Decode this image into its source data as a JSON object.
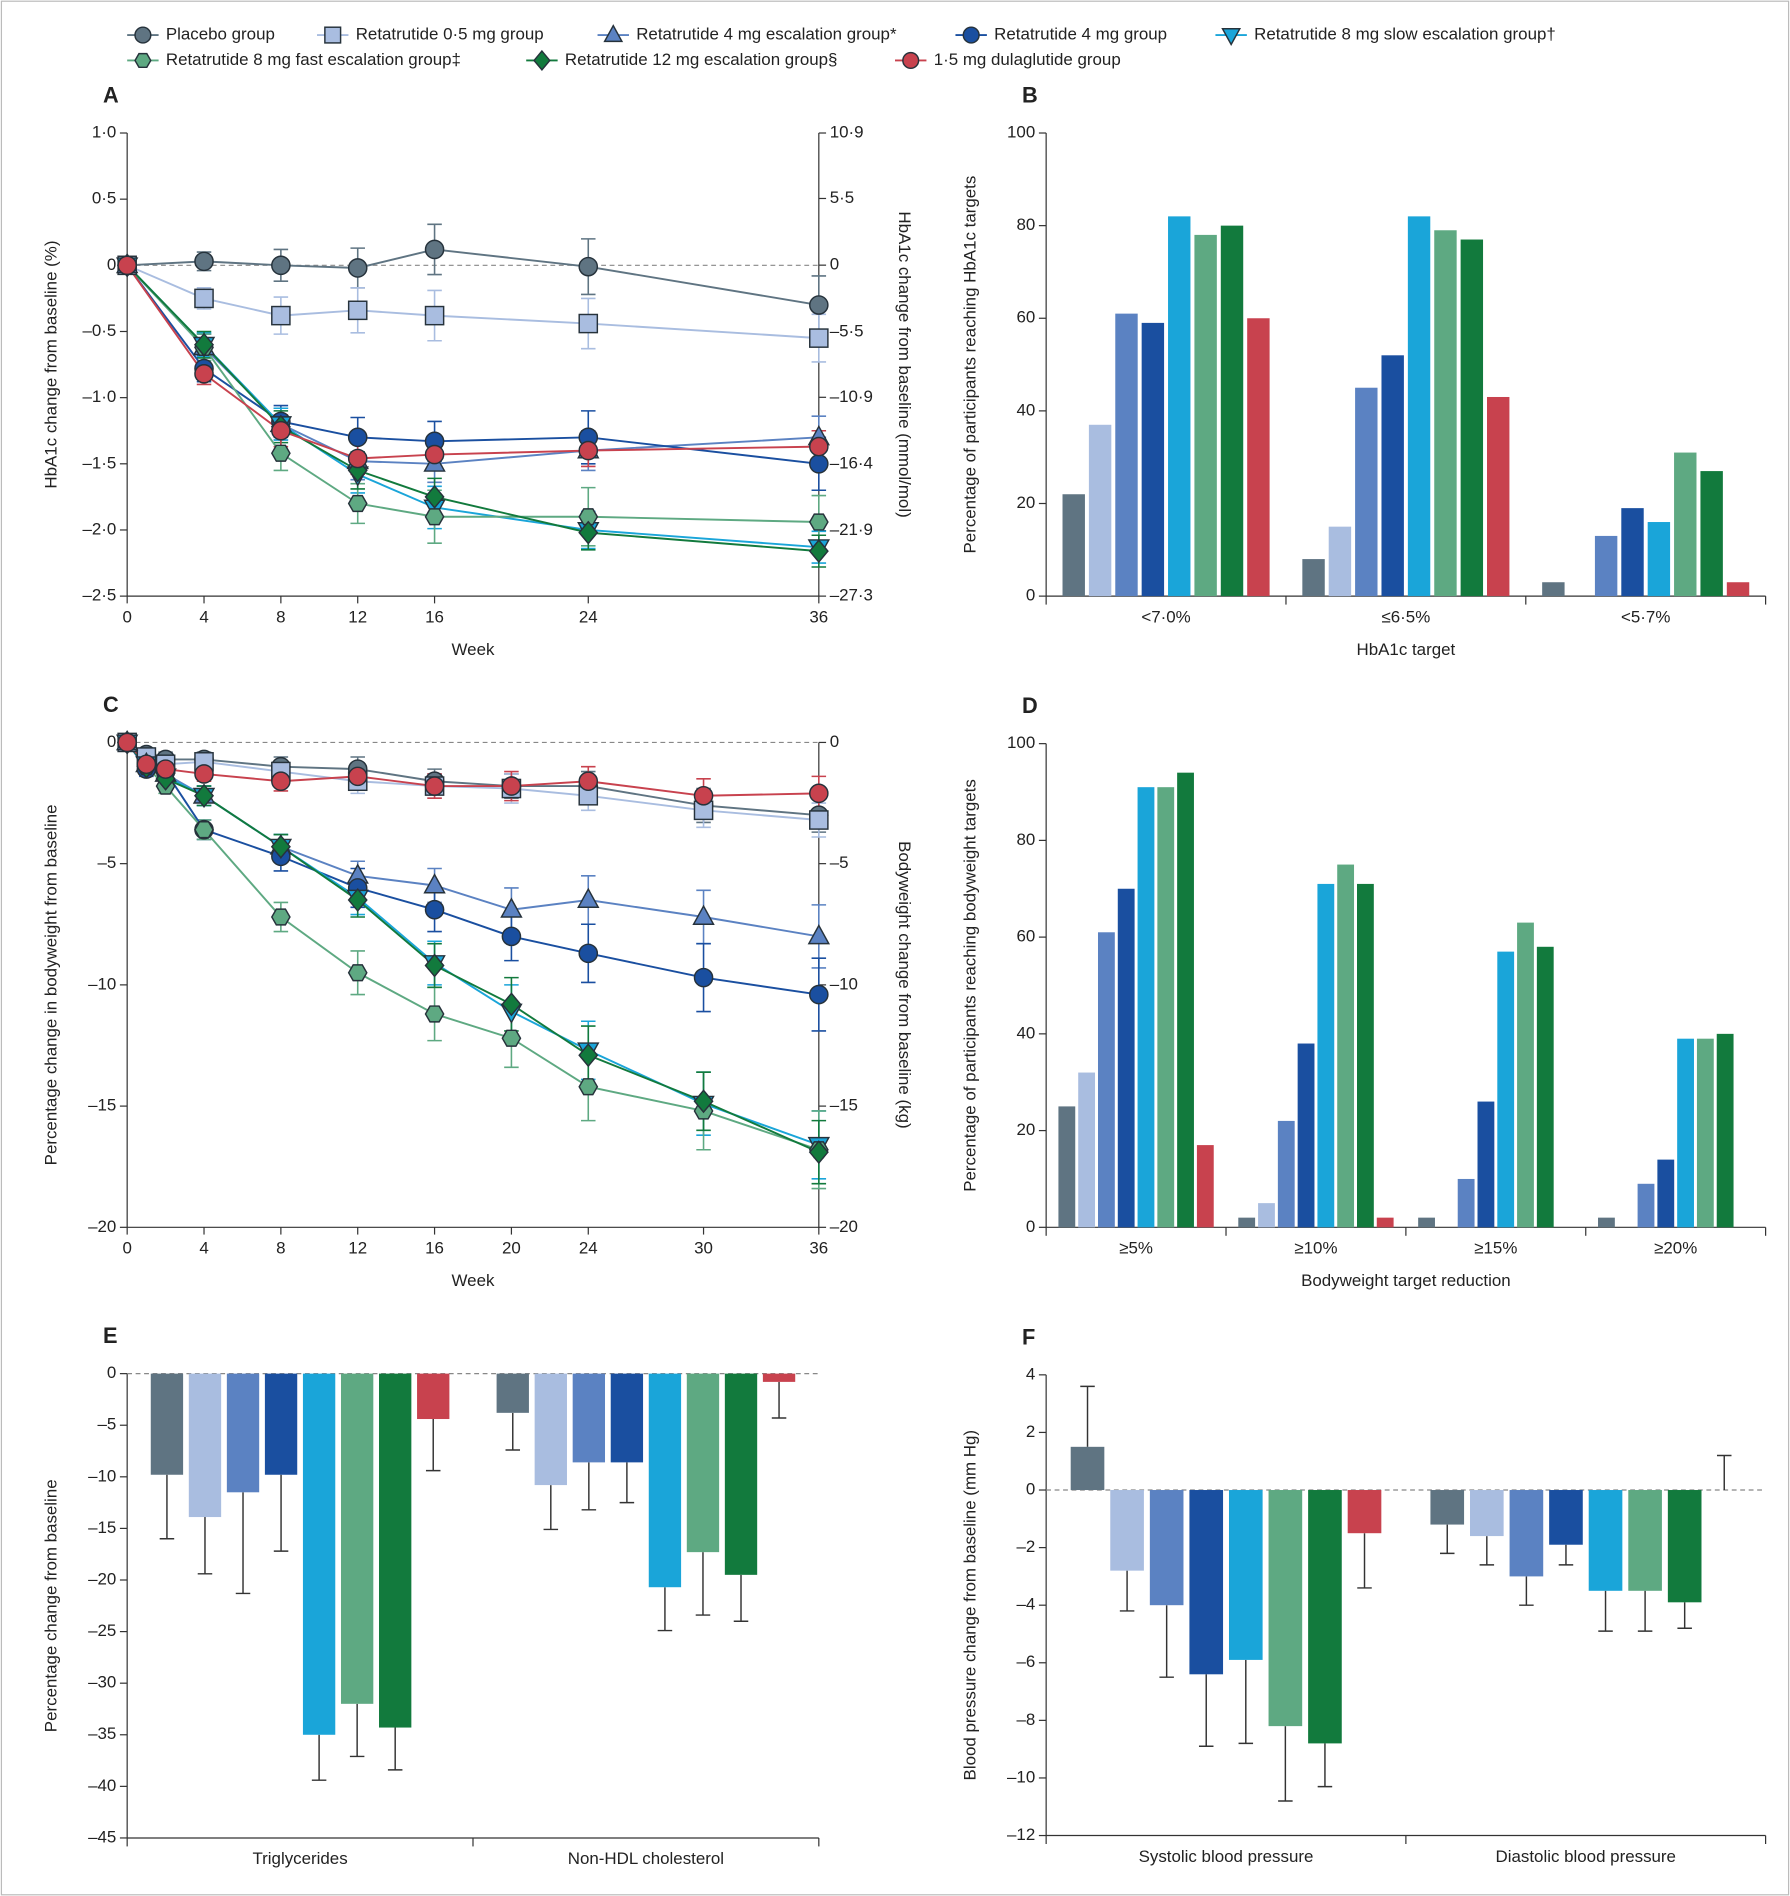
{
  "chart_data": [
    {
      "type": "line",
      "panel": "A",
      "xlabel": "Week",
      "ylabel": "HbA1c change from baseline (%)",
      "y2label": "HbA1c change from baseline (mmol/mol)",
      "x": [
        0,
        4,
        8,
        12,
        16,
        24,
        36
      ],
      "xlim": [
        0,
        36
      ],
      "xticks": [
        0,
        4,
        8,
        12,
        16,
        24,
        36
      ],
      "ylim": [
        -2.5,
        1.0
      ],
      "yticks": [
        {
          "value": 1.0,
          "label": "1·0"
        },
        {
          "value": 0.5,
          "label": "0·5"
        },
        0,
        {
          "value": -0.5,
          "label": "–0·5"
        },
        {
          "value": -1.0,
          "label": "–1·0"
        },
        {
          "value": -1.5,
          "label": "–1·5"
        },
        {
          "value": -2.0,
          "label": "–2·0"
        },
        {
          "value": -2.5,
          "label": "–2·5"
        }
      ],
      "y2lim": [
        -27.3,
        10.9
      ],
      "y2ticks": [
        {
          "value": 10.9,
          "label": "10·9"
        },
        {
          "value": 5.5,
          "label": "5·5"
        },
        0,
        {
          "value": -5.5,
          "label": "–5·5"
        },
        {
          "value": -10.9,
          "label": "–10·9"
        },
        {
          "value": -16.4,
          "label": "–16·4"
        },
        {
          "value": -21.9,
          "label": "–21·9"
        },
        {
          "value": -27.3,
          "label": "–27·3"
        }
      ],
      "zero_line": true,
      "series": [
        {
          "name": "Placebo group",
          "color": "#5f7482",
          "marker": "circle",
          "values": [
            0,
            0.03,
            0,
            -0.02,
            0.12,
            -0.01,
            -0.3
          ],
          "errors": [
            0.06,
            0.07,
            0.12,
            0.15,
            0.19,
            0.21,
            0.22
          ]
        },
        {
          "name": "Retatrutide 0·5 mg group",
          "color": "#a9bde0",
          "marker": "square",
          "values": [
            0,
            -0.25,
            -0.38,
            -0.34,
            -0.38,
            -0.44,
            -0.55
          ],
          "errors": [
            0.06,
            0.08,
            0.14,
            0.17,
            0.19,
            0.19,
            0.18
          ]
        },
        {
          "name": "Retatrutide 4 mg escalation group*",
          "color": "#5b82c2",
          "marker": "triangle",
          "values": [
            0,
            -0.62,
            -1.2,
            -1.48,
            -1.5,
            -1.4,
            -1.3
          ],
          "errors": [
            0.05,
            0.1,
            0.12,
            0.14,
            0.14,
            0.15,
            0.16
          ]
        },
        {
          "name": "Retatrutide 4 mg group",
          "color": "#1a4fa0",
          "marker": "circle",
          "values": [
            0,
            -0.78,
            -1.18,
            -1.3,
            -1.33,
            -1.3,
            -1.5
          ],
          "errors": [
            0.05,
            0.1,
            0.12,
            0.15,
            0.15,
            0.2,
            0.2
          ]
        },
        {
          "name": "Retatrutide 8 mg slow escalation group†",
          "color": "#1aa5d9",
          "marker": "triangle-down",
          "values": [
            0,
            -0.6,
            -1.2,
            -1.58,
            -1.83,
            -2.0,
            -2.13
          ],
          "errors": [
            0.05,
            0.09,
            0.12,
            0.14,
            0.16,
            0.14,
            0.12
          ]
        },
        {
          "name": "Retatrutide 8 mg fast escalation group‡",
          "color": "#5ea982",
          "marker": "hexagon",
          "values": [
            0,
            -0.62,
            -1.42,
            -1.8,
            -1.9,
            -1.9,
            -1.94
          ],
          "errors": [
            0.05,
            0.1,
            0.13,
            0.15,
            0.2,
            0.22,
            0.2
          ]
        },
        {
          "name": "Retatrutide 12 mg escalation group§",
          "color": "#127a3d",
          "marker": "diamond",
          "values": [
            0,
            -0.6,
            -1.22,
            -1.55,
            -1.75,
            -2.02,
            -2.16
          ],
          "errors": [
            0.05,
            0.1,
            0.12,
            0.14,
            0.14,
            0.13,
            0.12
          ]
        },
        {
          "name": "1·5 mg dulaglutide  group",
          "color": "#c8424e",
          "marker": "circle",
          "values": [
            0,
            -0.82,
            -1.25,
            -1.46,
            -1.43,
            -1.4,
            -1.37
          ],
          "errors": [
            0.05,
            0.08,
            0.12,
            0.12,
            0.12,
            0.12,
            0.12
          ]
        }
      ]
    },
    {
      "type": "bar",
      "panel": "B",
      "xlabel": "HbA1c target",
      "ylabel": "Percentage of participants reaching HbA1c targets",
      "categories": [
        "<7·0%",
        "≤6·5%",
        "<5·7%"
      ],
      "ylim": [
        0,
        100
      ],
      "yticks": [
        0,
        20,
        40,
        60,
        80,
        100
      ],
      "series": [
        {
          "color": "#5f7482",
          "values": [
            22,
            8,
            3
          ]
        },
        {
          "color": "#a9bde0",
          "values": [
            37,
            15,
            0
          ]
        },
        {
          "color": "#5b82c2",
          "values": [
            61,
            45,
            13
          ]
        },
        {
          "color": "#1a4fa0",
          "values": [
            59,
            52,
            19
          ]
        },
        {
          "color": "#1aa5d9",
          "values": [
            82,
            82,
            16
          ]
        },
        {
          "color": "#5ea982",
          "values": [
            78,
            79,
            31
          ]
        },
        {
          "color": "#127a3d",
          "values": [
            80,
            77,
            27
          ]
        },
        {
          "color": "#c8424e",
          "values": [
            60,
            43,
            3
          ]
        }
      ]
    },
    {
      "type": "line",
      "panel": "C",
      "xlabel": "Week",
      "ylabel": "Percentage change in bodyweight from baseline",
      "y2label": "Bodyweight change from baseline (kg)",
      "x": [
        0,
        1,
        2,
        4,
        8,
        12,
        16,
        20,
        24,
        30,
        36
      ],
      "xlim": [
        0,
        36
      ],
      "xticks": [
        0,
        4,
        8,
        12,
        16,
        20,
        24,
        30,
        36
      ],
      "ylim": [
        -20,
        0
      ],
      "yticks": [
        0,
        {
          "value": -5,
          "label": "–5"
        },
        {
          "value": -10,
          "label": "–10"
        },
        {
          "value": -15,
          "label": "–15"
        },
        {
          "value": -20,
          "label": "–20"
        }
      ],
      "y2lim": [
        -20,
        0
      ],
      "y2ticks": [
        0,
        {
          "value": -5,
          "label": "–5"
        },
        {
          "value": -10,
          "label": "–10"
        },
        {
          "value": -15,
          "label": "–15"
        },
        {
          "value": -20,
          "label": "–20"
        }
      ],
      "zero_line": true,
      "series": [
        {
          "color": "#5f7482",
          "marker": "circle",
          "values": [
            0,
            -0.5,
            -0.7,
            -0.7,
            -1.0,
            -1.1,
            -1.6,
            -1.8,
            -1.8,
            -2.6,
            -3.0
          ],
          "errors": [
            0.1,
            0.2,
            0.3,
            0.3,
            0.4,
            0.5,
            0.5,
            0.5,
            0.6,
            0.7,
            0.7
          ]
        },
        {
          "color": "#a9bde0",
          "marker": "square",
          "values": [
            0,
            -0.6,
            -0.9,
            -0.8,
            -1.2,
            -1.6,
            -1.8,
            -1.9,
            -2.2,
            -2.8,
            -3.2
          ],
          "errors": [
            0.1,
            0.2,
            0.3,
            0.3,
            0.4,
            0.5,
            0.5,
            0.6,
            0.6,
            0.7,
            0.7
          ]
        },
        {
          "color": "#5b82c2",
          "marker": "triangle",
          "values": [
            0,
            -0.9,
            -1.3,
            -2.2,
            -4.3,
            -5.5,
            -5.9,
            -6.9,
            -6.5,
            -7.2,
            -8.0
          ],
          "errors": [
            0.1,
            0.3,
            0.3,
            0.4,
            0.5,
            0.6,
            0.7,
            0.9,
            1.0,
            1.1,
            1.3
          ]
        },
        {
          "color": "#1a4fa0",
          "marker": "circle",
          "values": [
            0,
            -1.1,
            -1.2,
            -3.6,
            -4.7,
            -6.0,
            -6.9,
            -8.0,
            -8.7,
            -9.7,
            -10.4
          ],
          "errors": [
            0.1,
            0.3,
            0.3,
            0.4,
            0.6,
            0.8,
            0.9,
            1.0,
            1.2,
            1.4,
            1.5
          ]
        },
        {
          "color": "#1aa5d9",
          "marker": "triangle-down",
          "values": [
            0,
            -0.9,
            -1.4,
            -2.2,
            -4.3,
            -6.4,
            -9.1,
            -11.1,
            -12.7,
            -14.9,
            -16.6
          ],
          "errors": [
            0.1,
            0.3,
            0.3,
            0.4,
            0.5,
            0.7,
            0.9,
            1.1,
            1.2,
            1.3,
            1.4
          ]
        },
        {
          "color": "#5ea982",
          "marker": "hexagon",
          "values": [
            0,
            -1.0,
            -1.8,
            -3.6,
            -7.2,
            -9.5,
            -11.2,
            -12.2,
            -14.2,
            -15.2,
            -16.8
          ],
          "errors": [
            0.1,
            0.3,
            0.3,
            0.4,
            0.6,
            0.9,
            1.1,
            1.2,
            1.4,
            1.6,
            1.6
          ]
        },
        {
          "color": "#127a3d",
          "marker": "diamond",
          "values": [
            0,
            -1.0,
            -1.5,
            -2.2,
            -4.3,
            -6.5,
            -9.2,
            -10.8,
            -12.9,
            -14.8,
            -16.9
          ],
          "errors": [
            0.1,
            0.3,
            0.3,
            0.4,
            0.5,
            0.7,
            0.9,
            1.1,
            1.2,
            1.2,
            1.3
          ]
        },
        {
          "color": "#c8424e",
          "marker": "circle",
          "values": [
            0,
            -0.9,
            -1.1,
            -1.3,
            -1.6,
            -1.4,
            -1.8,
            -1.8,
            -1.6,
            -2.2,
            -2.1
          ],
          "errors": [
            0.1,
            0.2,
            0.3,
            0.3,
            0.4,
            0.5,
            0.5,
            0.6,
            0.6,
            0.7,
            0.7
          ]
        }
      ]
    },
    {
      "type": "bar",
      "panel": "D",
      "xlabel": "Bodyweight target reduction",
      "ylabel": "Percentage of participants reaching bodyweight targets",
      "categories": [
        "≥5%",
        "≥10%",
        "≥15%",
        "≥20%"
      ],
      "ylim": [
        0,
        100
      ],
      "yticks": [
        0,
        20,
        40,
        60,
        80,
        100
      ],
      "series": [
        {
          "color": "#5f7482",
          "values": [
            25,
            2,
            2,
            2
          ]
        },
        {
          "color": "#a9bde0",
          "values": [
            32,
            5,
            0,
            0
          ]
        },
        {
          "color": "#5b82c2",
          "values": [
            61,
            22,
            10,
            9
          ]
        },
        {
          "color": "#1a4fa0",
          "values": [
            70,
            38,
            26,
            14
          ]
        },
        {
          "color": "#1aa5d9",
          "values": [
            91,
            71,
            57,
            39
          ]
        },
        {
          "color": "#5ea982",
          "values": [
            91,
            75,
            63,
            39
          ]
        },
        {
          "color": "#127a3d",
          "values": [
            94,
            71,
            58,
            40
          ]
        },
        {
          "color": "#c8424e",
          "values": [
            17,
            2,
            0,
            0
          ]
        }
      ]
    },
    {
      "type": "bar",
      "panel": "E",
      "ylabel": "Percentage change from baseline",
      "categories": [
        "Triglycerides",
        "Non-HDL cholesterol"
      ],
      "ylim": [
        -45,
        0
      ],
      "yticks": [
        0,
        {
          "value": -5,
          "label": "–5"
        },
        {
          "value": -10,
          "label": "–10"
        },
        {
          "value": -15,
          "label": "–15"
        },
        {
          "value": -20,
          "label": "–20"
        },
        {
          "value": -25,
          "label": "–25"
        },
        {
          "value": -30,
          "label": "–30"
        },
        {
          "value": -35,
          "label": "–35"
        },
        {
          "value": -40,
          "label": "–40"
        },
        {
          "value": -45,
          "label": "–45"
        }
      ],
      "zero_line": true,
      "series": [
        {
          "color": "#5f7482",
          "values": [
            -9.8,
            -3.8
          ],
          "errors": [
            6.2,
            3.6
          ]
        },
        {
          "color": "#a9bde0",
          "values": [
            -13.9,
            -10.8
          ],
          "errors": [
            5.5,
            4.3
          ]
        },
        {
          "color": "#5b82c2",
          "values": [
            -11.5,
            -8.6
          ],
          "errors": [
            9.8,
            4.6
          ]
        },
        {
          "color": "#1a4fa0",
          "values": [
            -9.8,
            -8.6
          ],
          "errors": [
            7.4,
            3.9
          ]
        },
        {
          "color": "#1aa5d9",
          "values": [
            -35,
            -20.7
          ],
          "errors": [
            4.4,
            4.2
          ]
        },
        {
          "color": "#5ea982",
          "values": [
            -32,
            -17.3
          ],
          "errors": [
            5.1,
            6.1
          ]
        },
        {
          "color": "#127a3d",
          "values": [
            -34.3,
            -19.5
          ],
          "errors": [
            4.1,
            4.5
          ]
        },
        {
          "color": "#c8424e",
          "values": [
            -4.4,
            -0.8
          ],
          "errors": [
            5.0,
            3.5
          ]
        }
      ]
    },
    {
      "type": "bar",
      "panel": "F",
      "ylabel": "Blood pressure change from baseline (mm Hg)",
      "categories": [
        "Systolic blood pressure",
        "Diastolic blood pressure"
      ],
      "ylim": [
        -12,
        4
      ],
      "yticks": [
        4,
        2,
        0,
        {
          "value": -2,
          "label": "–2"
        },
        {
          "value": -4,
          "label": "–4"
        },
        {
          "value": -6,
          "label": "–6"
        },
        {
          "value": -8,
          "label": "–8"
        },
        {
          "value": -10,
          "label": "–10"
        },
        {
          "value": -12,
          "label": "–12"
        }
      ],
      "zero_line": true,
      "series": [
        {
          "color": "#5f7482",
          "values": [
            1.5,
            -1.2
          ],
          "errors": [
            2.1,
            1.0
          ]
        },
        {
          "color": "#a9bde0",
          "values": [
            -2.8,
            -1.6
          ],
          "errors": [
            1.4,
            1.0
          ]
        },
        {
          "color": "#5b82c2",
          "values": [
            -4.0,
            -3.0
          ],
          "errors": [
            2.5,
            1.0
          ]
        },
        {
          "color": "#1a4fa0",
          "values": [
            -6.4,
            -1.9
          ],
          "errors": [
            2.5,
            0.7
          ]
        },
        {
          "color": "#1aa5d9",
          "values": [
            -5.9,
            -3.5
          ],
          "errors": [
            2.9,
            1.4
          ]
        },
        {
          "color": "#5ea982",
          "values": [
            -8.2,
            -3.5
          ],
          "errors": [
            2.6,
            1.4
          ]
        },
        {
          "color": "#127a3d",
          "values": [
            -8.8,
            -3.9
          ],
          "errors": [
            1.5,
            0.9
          ]
        },
        {
          "color": "#c8424e",
          "values": [
            -1.5,
            0
          ],
          "errors": [
            1.9,
            1.2
          ]
        }
      ]
    }
  ]
}
